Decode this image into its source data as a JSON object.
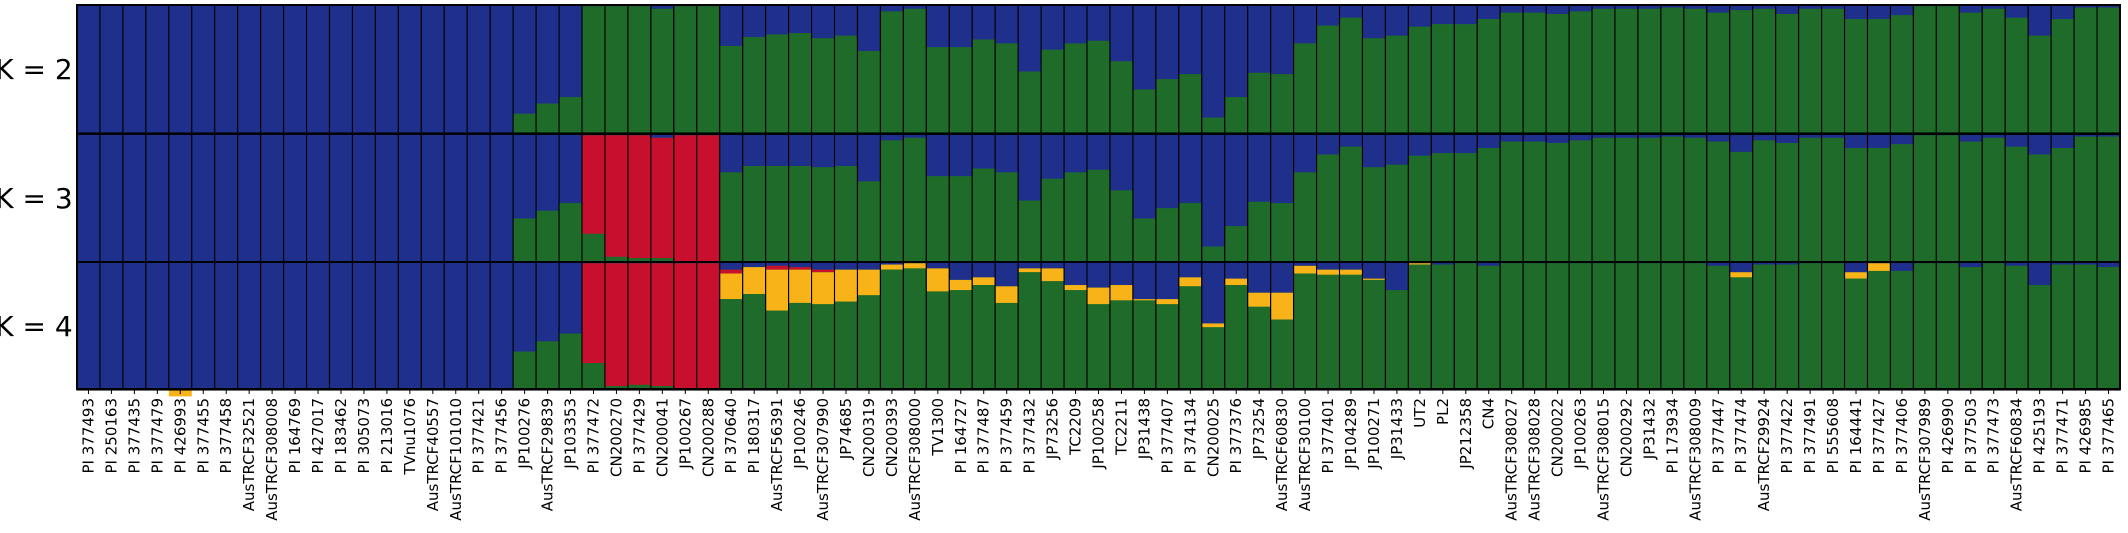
{
  "chart_data": {
    "type": "structure-barplot",
    "colors": {
      "blue": "#1f2f8c",
      "green": "#1f6b2a",
      "red": "#c8102e",
      "yellow": "#f7b318",
      "outline": "#000000"
    },
    "component_order": [
      "blue",
      "red",
      "yellow",
      "green"
    ],
    "samples": [
      "PI 377493",
      "PI 250163",
      "PI 377435",
      "PI 377479",
      "PI 426993",
      "PI 377455",
      "PI 377458",
      "AusTRCF32521",
      "AusTRCF308008",
      "PI 164769",
      "PI 427017",
      "PI 183462",
      "PI 305073",
      "PI 213016",
      "TVnu1076",
      "AusTRCF40557",
      "AusTRCF101010",
      "PI 377421",
      "PI 377456",
      "JP100276",
      "AusTRCF29839",
      "JP103353",
      "PI 377472",
      "CN200270",
      "PI 377429",
      "CN200041",
      "JP100267",
      "CN200288",
      "PI 370640",
      "PI 180317",
      "AusTRCF56391",
      "JP100246",
      "AusTRCF307990",
      "JP74685",
      "CN200319",
      "CN200393",
      "AusTRCF308000",
      "TV1300",
      "PI 164727",
      "PI 377487",
      "PI 377459",
      "PI 377432",
      "JP73256",
      "TC2209",
      "JP100258",
      "TC2211",
      "JP31438",
      "PI 377407",
      "PI 374134",
      "CN200025",
      "PI 377376",
      "JP73254",
      "AusTRCF60830",
      "AusTRCF30100",
      "PI 377401",
      "JP104289",
      "JP100271",
      "JP31433",
      "UT2",
      "PL2",
      "JP212358",
      "CN4",
      "AusTRCF308027",
      "AusTRCF308028",
      "CN200022",
      "JP100263",
      "AusTRCF308015",
      "CN200292",
      "JP31432",
      "PI 173934",
      "AusTRCF308009",
      "PI 377447",
      "PI 377474",
      "AusTRCF29924",
      "PI 377422",
      "PI 377491",
      "PI 555608",
      "PI 164441",
      "PI 377427",
      "PI 377406",
      "AusTRCF307989",
      "PI 426990",
      "PI 377503",
      "PI 377473",
      "AusTRCF60834",
      "PI 425193",
      "PI 377471",
      "PI 426985",
      "PI 377465"
    ],
    "panels": [
      {
        "label": "K = 2",
        "blue": [
          1,
          1,
          1,
          1,
          1,
          1,
          1,
          1,
          1,
          1,
          1,
          1,
          1,
          1,
          1,
          1,
          1,
          1,
          1,
          0.85,
          0.77,
          0.72,
          0.01,
          0.01,
          0.01,
          0.03,
          0.01,
          0.01,
          0.32,
          0.25,
          0.23,
          0.22,
          0.26,
          0.24,
          0.36,
          0.05,
          0.03,
          0.33,
          0.33,
          0.27,
          0.3,
          0.52,
          0.35,
          0.3,
          0.28,
          0.44,
          0.66,
          0.58,
          0.54,
          0.88,
          0.72,
          0.53,
          0.54,
          0.3,
          0.16,
          0.1,
          0.26,
          0.24,
          0.17,
          0.15,
          0.15,
          0.11,
          0.06,
          0.06,
          0.07,
          0.05,
          0.03,
          0.03,
          0.03,
          0.02,
          0.03,
          0.06,
          0.04,
          0.03,
          0.07,
          0.03,
          0.03,
          0.11,
          0.11,
          0.08,
          0.01,
          0.01,
          0.06,
          0.03,
          0.1,
          0.24,
          0.11,
          0.02,
          0.02
        ],
        "red": [],
        "yellow": []
      },
      {
        "label": "K = 3",
        "blue": [
          1,
          1,
          1,
          1,
          1,
          1,
          1,
          1,
          1,
          1,
          1,
          1,
          1,
          1,
          1,
          1,
          1,
          1,
          1,
          0.66,
          0.6,
          0.54,
          0.01,
          0.01,
          0.01,
          0.03,
          0.01,
          0.01,
          0.3,
          0.25,
          0.25,
          0.25,
          0.26,
          0.25,
          0.37,
          0.05,
          0.03,
          0.33,
          0.33,
          0.27,
          0.3,
          0.52,
          0.35,
          0.3,
          0.28,
          0.44,
          0.66,
          0.58,
          0.54,
          0.88,
          0.72,
          0.53,
          0.54,
          0.3,
          0.16,
          0.1,
          0.26,
          0.24,
          0.17,
          0.15,
          0.15,
          0.11,
          0.06,
          0.06,
          0.07,
          0.05,
          0.03,
          0.03,
          0.03,
          0.02,
          0.03,
          0.06,
          0.14,
          0.05,
          0.07,
          0.03,
          0.03,
          0.11,
          0.11,
          0.08,
          0.01,
          0.01,
          0.06,
          0.03,
          0.1,
          0.16,
          0.11,
          0.02,
          0.02
        ],
        "red": [
          0,
          0,
          0,
          0,
          0,
          0,
          0,
          0,
          0,
          0,
          0,
          0,
          0,
          0,
          0,
          0,
          0,
          0,
          0,
          0,
          0,
          0,
          0.77,
          0.95,
          0.96,
          0.94,
          0.99,
          0.99,
          0,
          0,
          0,
          0,
          0,
          0,
          0,
          0,
          0,
          0,
          0,
          0,
          0,
          0,
          0,
          0,
          0,
          0,
          0,
          0,
          0,
          0,
          0,
          0,
          0,
          0,
          0,
          0,
          0,
          0,
          0,
          0,
          0,
          0,
          0,
          0,
          0,
          0,
          0,
          0,
          0,
          0,
          0,
          0,
          0,
          0,
          0,
          0,
          0,
          0,
          0,
          0,
          0,
          0,
          0,
          0,
          0,
          0,
          0,
          0,
          0
        ],
        "yellow": []
      },
      {
        "label": "K = 4",
        "blue": [
          1,
          1,
          1,
          1,
          1,
          1,
          1,
          1,
          1,
          1,
          1,
          1,
          1,
          1,
          1,
          1,
          1,
          1,
          1,
          0.7,
          0.62,
          0.56,
          0.01,
          0.01,
          0.01,
          0.01,
          0.01,
          0.01,
          0.06,
          0.04,
          0.03,
          0.04,
          0.06,
          0.06,
          0.06,
          0.02,
          0.01,
          0.05,
          0.14,
          0.12,
          0.19,
          0.05,
          0.05,
          0.18,
          0.2,
          0.18,
          0.29,
          0.29,
          0.12,
          0.48,
          0.13,
          0.24,
          0.24,
          0.03,
          0.06,
          0.06,
          0.13,
          0.22,
          0.01,
          0.02,
          0.01,
          0.03,
          0.01,
          0.01,
          0.01,
          0.01,
          0.01,
          0.01,
          0.01,
          0.01,
          0.01,
          0.03,
          0.08,
          0.02,
          0.02,
          0.01,
          0.01,
          0.08,
          0.01,
          0.07,
          0.01,
          0.01,
          0.04,
          0.01,
          0.03,
          0.18,
          0.02,
          0.02,
          0.04
        ],
        "red": [
          0,
          0,
          0,
          0,
          0,
          0,
          0,
          0,
          0,
          0,
          0,
          0,
          0,
          0,
          0,
          0,
          0,
          0,
          0,
          0,
          0,
          0,
          0.78,
          0.96,
          0.95,
          0.96,
          0.99,
          0.99,
          0.03,
          0,
          0.03,
          0.02,
          0.02,
          0,
          0,
          0,
          0,
          0,
          0,
          0,
          0,
          0,
          0,
          0,
          0,
          0,
          0,
          0,
          0,
          0,
          0,
          0,
          0,
          0,
          0,
          0,
          0,
          0,
          0,
          0,
          0,
          0,
          0,
          0,
          0,
          0,
          0,
          0,
          0,
          0,
          0,
          0,
          0,
          0,
          0,
          0,
          0,
          0,
          0,
          0,
          0,
          0,
          0,
          0,
          0,
          0,
          0,
          0,
          0
        ],
        "yellow": [
          0,
          0,
          0,
          0,
          0.05,
          0,
          0,
          0,
          0,
          0,
          0,
          0,
          0,
          0,
          0,
          0,
          0,
          0,
          0,
          0,
          0,
          0,
          0,
          0,
          0,
          0,
          0,
          0,
          0.2,
          0.21,
          0.32,
          0.26,
          0.25,
          0.25,
          0.2,
          0.04,
          0.04,
          0.18,
          0.08,
          0.06,
          0.13,
          0.03,
          0.1,
          0.04,
          0.13,
          0.12,
          0.01,
          0.04,
          0.07,
          0.03,
          0.05,
          0.11,
          0.21,
          0.06,
          0.04,
          0.04,
          0.01,
          0,
          0.01,
          0,
          0,
          0,
          0,
          0,
          0,
          0,
          0,
          0,
          0,
          0,
          0,
          0,
          0.04,
          0,
          0,
          0,
          0,
          0.05,
          0.06,
          0,
          0,
          0,
          0,
          0,
          0,
          0,
          0,
          0,
          0
        ]
      }
    ]
  }
}
